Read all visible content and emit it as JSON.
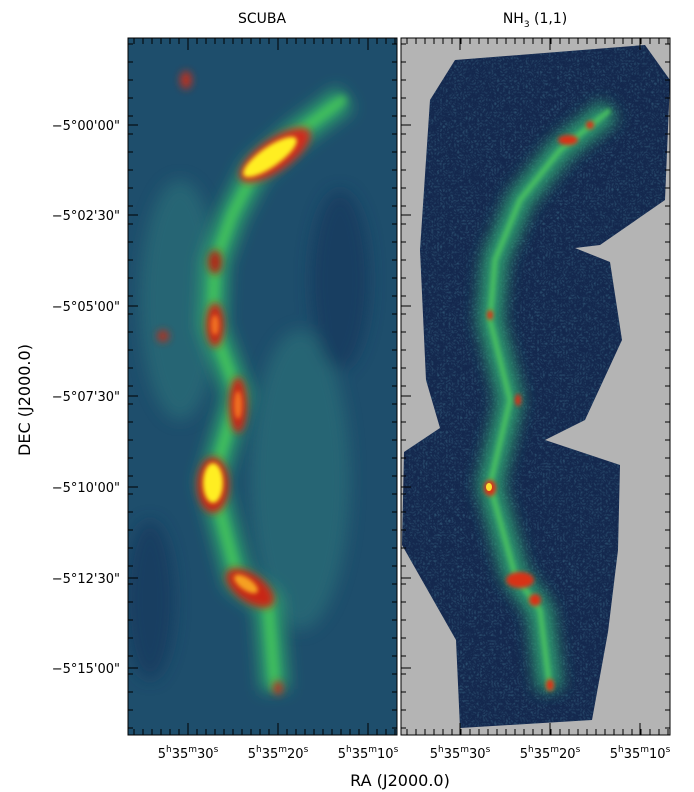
{
  "panels": [
    {
      "title": [
        "SCUBA"
      ]
    },
    {
      "title": [
        "NH",
        "3",
        " (1,1)"
      ]
    }
  ],
  "y_axis": {
    "label": "DEC (J2000.0)",
    "ticks": [
      "−5°00'00\"",
      "−5°02'30\"",
      "−5°05'00\"",
      "−5°07'30\"",
      "−5°10'00\"",
      "−5°12'30\"",
      "−5°15'00\""
    ]
  },
  "x_axis": {
    "label": "RA (J2000.0)",
    "ticks": [
      [
        "5",
        "h",
        "35",
        "m",
        "30",
        "s"
      ],
      [
        "5",
        "h",
        "35",
        "m",
        "20",
        "s"
      ],
      [
        "5",
        "h",
        "35",
        "m",
        "10",
        "s"
      ]
    ]
  }
}
